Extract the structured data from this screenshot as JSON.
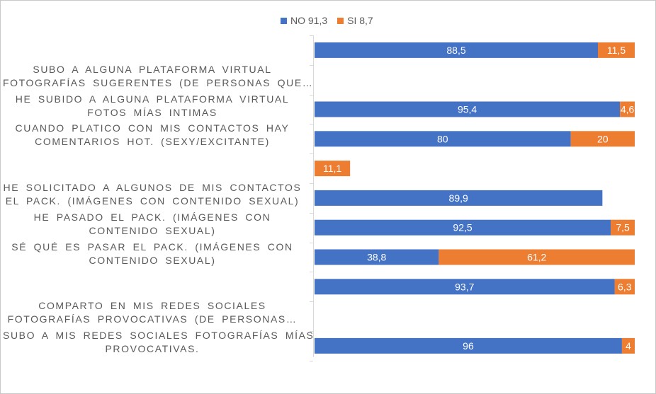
{
  "chart_data": {
    "type": "bar",
    "orientation": "horizontal",
    "stacked": true,
    "title": "",
    "legend": {
      "position": "top",
      "entries": [
        "NO 91,3",
        "SI 8,7"
      ]
    },
    "xlim": [
      0,
      100
    ],
    "categories": [
      "",
      "SUBO A ALGUNA PLATAFORMA VIRTUAL FOTOGRAFÍAS SUGERENTES (DE PERSONAS QUE…",
      "HE SUBIDO A ALGUNA PLATAFORMA VIRTUAL FOTOS MÍAS INTIMAS",
      "CUANDO PLATICO CON MIS CONTACTOS HAY COMENTARIOS HOT. (SEXY/EXCITANTE)",
      "",
      "HE SOLICITADO A ALGUNOS DE MIS CONTACTOS EL PACK. (IMÁGENES CON CONTENIDO SEXUAL)",
      "HE PASADO EL PACK. (IMÁGENES CON CONTENIDO SEXUAL)",
      "SÉ QUÉ ES PASAR EL PACK. (IMÁGENES CON CONTENIDO SEXUAL)",
      "",
      "COMPARTO EN MIS REDES SOCIALES FOTOGRAFÍAS PROVOCATIVAS (DE PERSONAS…",
      "SUBO A MIS REDES SOCIALES FOTOGRAFÍAS MÍAS PROVOCATIVAS."
    ],
    "series": [
      {
        "name": "NO 91,3",
        "color": "#4472c4",
        "values": [
          88.5,
          null,
          95.4,
          80,
          null,
          89.9,
          92.5,
          38.8,
          93.7,
          null,
          96
        ],
        "labels": [
          "88,5",
          "",
          "95,4",
          "80",
          "",
          "89,9",
          "92,5",
          "38,8",
          "93,7",
          "",
          "96"
        ]
      },
      {
        "name": "SI 8,7",
        "color": "#ed7d31",
        "values": [
          11.5,
          null,
          4.6,
          20,
          11.1,
          null,
          7.5,
          61.2,
          6.3,
          null,
          4
        ],
        "labels": [
          "11,5",
          "",
          "4,6",
          "20",
          "11,1",
          "",
          "7,5",
          "61,2",
          "6,3",
          "",
          "4"
        ]
      }
    ]
  },
  "category_lines": [
    [],
    [
      "SUBO A ALGUNA PLATAFORMA VIRTUAL",
      "FOTOGRAFÍAS SUGERENTES (DE PERSONAS QUE…"
    ],
    [
      "HE SUBIDO A ALGUNA PLATAFORMA VIRTUAL",
      "FOTOS MÍAS INTIMAS"
    ],
    [
      "CUANDO PLATICO CON MIS CONTACTOS HAY",
      "COMENTARIOS HOT. (SEXY/EXCITANTE)"
    ],
    [],
    [
      "HE SOLICITADO A ALGUNOS DE MIS CONTACTOS",
      "EL PACK. (IMÁGENES CON CONTENIDO SEXUAL)"
    ],
    [
      "HE PASADO EL PACK. (IMÁGENES CON",
      "CONTENIDO SEXUAL)"
    ],
    [
      "SÉ QUÉ ES PASAR EL PACK. (IMÁGENES CON",
      "CONTENIDO SEXUAL)"
    ],
    [],
    [
      "COMPARTO EN MIS REDES SOCIALES",
      "FOTOGRAFÍAS PROVOCATIVAS (DE PERSONAS…"
    ],
    [
      "SUBO A MIS REDES SOCIALES FOTOGRAFÍAS MÍAS",
      "PROVOCATIVAS."
    ]
  ]
}
